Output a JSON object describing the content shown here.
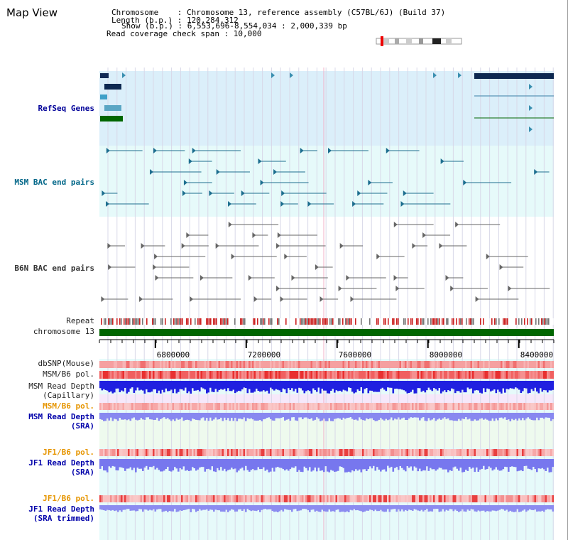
{
  "header": {
    "title": "Map View",
    "chromosome_line": "Chromosome    : Chromosome 13, reference assembly (C57BL/6J) (Build 37)",
    "length_line": "Length (b.p.) : 120,284,312",
    "show_line": "Show (b.p.) : 6,553,696-8,554,034 : 2,000,339 bp",
    "coverage_line": "Read coverage check span : 10,000"
  },
  "tracks": {
    "refseq": "RefSeq Genes",
    "msm_bac": "MSM BAC end pairs",
    "b6n_bac": "B6N BAC end pairs",
    "repeat": "Repeat",
    "chromosome": "chromosome 13",
    "dbsnp": "dbSNP(Mouse)",
    "msm_pol1": "MSM/B6 pol.",
    "msm_depth_cap_1": "MSM Read Depth",
    "msm_depth_cap_2": "(Capillary)",
    "msm_pol2": "MSM/B6 pol.",
    "msm_depth_sra_1": "MSM Read Depth",
    "msm_depth_sra_2": "(SRA)",
    "jf1_pol1": "JF1/B6 pol.",
    "jf1_depth_sra_1": "JF1 Read Depth",
    "jf1_depth_sra_2": "(SRA)",
    "jf1_pol2": "JF1/B6 pol.",
    "jf1_depth_trim_1": "JF1 Read Depth",
    "jf1_depth_trim_2": "(SRA trimmed)"
  },
  "axis": {
    "ticks": [
      "6800000",
      "7200000",
      "7600000",
      "8000000",
      "8400000"
    ],
    "tick_values": [
      6800000,
      7200000,
      7600000,
      8000000,
      8400000
    ],
    "start": 6553696,
    "end": 8554034
  },
  "colors": {
    "refseq_bg": "#dbeffa",
    "bac_bg": "#e6fafa",
    "msm_label": "#006688",
    "b6n_label": "#333333",
    "pol_label": "#e69500",
    "depth_label": "#0000aa",
    "chromosome": "#006600"
  }
}
